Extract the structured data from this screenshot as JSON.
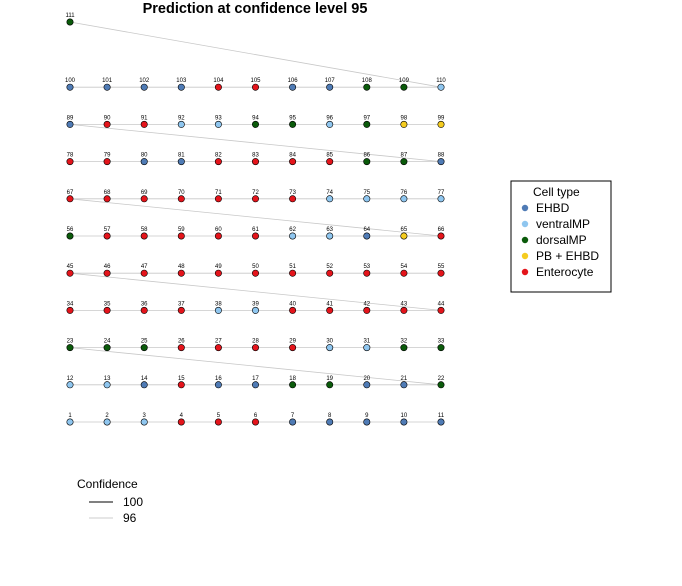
{
  "chart_data": {
    "type": "network",
    "title": "Prediction at confidence level 95",
    "node_colors": {
      "EHBD": "#4f7bb5",
      "ventralMP": "#8fc6ef",
      "dorsalMP": "#0a5a0a",
      "PB + EHBD": "#f5cc1f",
      "Enterocyte": "#e4141b"
    },
    "node_legend": {
      "title": "Cell type",
      "placement": "right",
      "items": [
        "EHBD",
        "ventralMP",
        "dorsalMP",
        "PB + EHBD",
        "Enterocyte"
      ]
    },
    "edge_legend": {
      "title": "Confidence",
      "placement": "bottom-left",
      "items": [
        {
          "label": "100",
          "color": "#000000"
        },
        {
          "label": "96",
          "color": "#cccccc"
        }
      ]
    },
    "grid": {
      "columns": 11,
      "rows": 10
    },
    "nodes": [
      {
        "id": "1",
        "type": "ventralMP"
      },
      {
        "id": "2",
        "type": "ventralMP"
      },
      {
        "id": "3",
        "type": "ventralMP"
      },
      {
        "id": "4",
        "type": "Enterocyte"
      },
      {
        "id": "5",
        "type": "Enterocyte"
      },
      {
        "id": "6",
        "type": "Enterocyte"
      },
      {
        "id": "7",
        "type": "EHBD"
      },
      {
        "id": "8",
        "type": "EHBD"
      },
      {
        "id": "9",
        "type": "EHBD"
      },
      {
        "id": "10",
        "type": "EHBD"
      },
      {
        "id": "11",
        "type": "EHBD"
      },
      {
        "id": "12",
        "type": "ventralMP"
      },
      {
        "id": "13",
        "type": "ventralMP"
      },
      {
        "id": "14",
        "type": "EHBD"
      },
      {
        "id": "15",
        "type": "Enterocyte"
      },
      {
        "id": "16",
        "type": "EHBD"
      },
      {
        "id": "17",
        "type": "EHBD"
      },
      {
        "id": "18",
        "type": "dorsalMP"
      },
      {
        "id": "19",
        "type": "dorsalMP"
      },
      {
        "id": "20",
        "type": "EHBD"
      },
      {
        "id": "21",
        "type": "EHBD"
      },
      {
        "id": "22",
        "type": "dorsalMP"
      },
      {
        "id": "23",
        "type": "dorsalMP"
      },
      {
        "id": "24",
        "type": "dorsalMP"
      },
      {
        "id": "25",
        "type": "dorsalMP"
      },
      {
        "id": "26",
        "type": "Enterocyte"
      },
      {
        "id": "27",
        "type": "Enterocyte"
      },
      {
        "id": "28",
        "type": "Enterocyte"
      },
      {
        "id": "29",
        "type": "Enterocyte"
      },
      {
        "id": "30",
        "type": "ventralMP"
      },
      {
        "id": "31",
        "type": "ventralMP"
      },
      {
        "id": "32",
        "type": "dorsalMP"
      },
      {
        "id": "33",
        "type": "dorsalMP"
      },
      {
        "id": "34",
        "type": "Enterocyte"
      },
      {
        "id": "35",
        "type": "Enterocyte"
      },
      {
        "id": "36",
        "type": "Enterocyte"
      },
      {
        "id": "37",
        "type": "Enterocyte"
      },
      {
        "id": "38",
        "type": "ventralMP"
      },
      {
        "id": "39",
        "type": "ventralMP"
      },
      {
        "id": "40",
        "type": "Enterocyte"
      },
      {
        "id": "41",
        "type": "Enterocyte"
      },
      {
        "id": "42",
        "type": "Enterocyte"
      },
      {
        "id": "43",
        "type": "Enterocyte"
      },
      {
        "id": "44",
        "type": "Enterocyte"
      },
      {
        "id": "45",
        "type": "Enterocyte"
      },
      {
        "id": "46",
        "type": "Enterocyte"
      },
      {
        "id": "47",
        "type": "Enterocyte"
      },
      {
        "id": "48",
        "type": "Enterocyte"
      },
      {
        "id": "49",
        "type": "Enterocyte"
      },
      {
        "id": "50",
        "type": "Enterocyte"
      },
      {
        "id": "51",
        "type": "Enterocyte"
      },
      {
        "id": "52",
        "type": "Enterocyte"
      },
      {
        "id": "53",
        "type": "Enterocyte"
      },
      {
        "id": "54",
        "type": "Enterocyte"
      },
      {
        "id": "55",
        "type": "Enterocyte"
      },
      {
        "id": "56",
        "type": "dorsalMP"
      },
      {
        "id": "57",
        "type": "Enterocyte"
      },
      {
        "id": "58",
        "type": "Enterocyte"
      },
      {
        "id": "59",
        "type": "Enterocyte"
      },
      {
        "id": "60",
        "type": "Enterocyte"
      },
      {
        "id": "61",
        "type": "Enterocyte"
      },
      {
        "id": "62",
        "type": "ventralMP"
      },
      {
        "id": "63",
        "type": "ventralMP"
      },
      {
        "id": "64",
        "type": "EHBD"
      },
      {
        "id": "65",
        "type": "PB + EHBD"
      },
      {
        "id": "66",
        "type": "Enterocyte"
      },
      {
        "id": "67",
        "type": "Enterocyte"
      },
      {
        "id": "68",
        "type": "Enterocyte"
      },
      {
        "id": "69",
        "type": "Enterocyte"
      },
      {
        "id": "70",
        "type": "Enterocyte"
      },
      {
        "id": "71",
        "type": "Enterocyte"
      },
      {
        "id": "72",
        "type": "Enterocyte"
      },
      {
        "id": "73",
        "type": "Enterocyte"
      },
      {
        "id": "74",
        "type": "ventralMP"
      },
      {
        "id": "75",
        "type": "ventralMP"
      },
      {
        "id": "76",
        "type": "ventralMP"
      },
      {
        "id": "77",
        "type": "ventralMP"
      },
      {
        "id": "78",
        "type": "Enterocyte"
      },
      {
        "id": "79",
        "type": "Enterocyte"
      },
      {
        "id": "80",
        "type": "EHBD"
      },
      {
        "id": "81",
        "type": "EHBD"
      },
      {
        "id": "82",
        "type": "Enterocyte"
      },
      {
        "id": "83",
        "type": "Enterocyte"
      },
      {
        "id": "84",
        "type": "Enterocyte"
      },
      {
        "id": "85",
        "type": "Enterocyte"
      },
      {
        "id": "86",
        "type": "dorsalMP"
      },
      {
        "id": "87",
        "type": "dorsalMP"
      },
      {
        "id": "88",
        "type": "EHBD"
      },
      {
        "id": "89",
        "type": "EHBD"
      },
      {
        "id": "90",
        "type": "Enterocyte"
      },
      {
        "id": "91",
        "type": "Enterocyte"
      },
      {
        "id": "92",
        "type": "ventralMP"
      },
      {
        "id": "93",
        "type": "ventralMP"
      },
      {
        "id": "94",
        "type": "dorsalMP"
      },
      {
        "id": "95",
        "type": "dorsalMP"
      },
      {
        "id": "96",
        "type": "ventralMP"
      },
      {
        "id": "97",
        "type": "dorsalMP"
      },
      {
        "id": "98",
        "type": "PB + EHBD"
      },
      {
        "id": "99",
        "type": "PB + EHBD"
      },
      {
        "id": "100",
        "type": "EHBD"
      },
      {
        "id": "101",
        "type": "EHBD"
      },
      {
        "id": "102",
        "type": "EHBD"
      },
      {
        "id": "103",
        "type": "EHBD"
      },
      {
        "id": "104",
        "type": "Enterocyte"
      },
      {
        "id": "105",
        "type": "Enterocyte"
      },
      {
        "id": "106",
        "type": "EHBD"
      },
      {
        "id": "107",
        "type": "EHBD"
      },
      {
        "id": "108",
        "type": "dorsalMP"
      },
      {
        "id": "109",
        "type": "dorsalMP"
      },
      {
        "id": "110",
        "type": "ventralMP"
      },
      {
        "id": "111",
        "type": "dorsalMP"
      }
    ],
    "edges": [
      {
        "from": "1",
        "to": "2",
        "confidence": 96
      },
      {
        "from": "2",
        "to": "3",
        "confidence": 96
      },
      {
        "from": "3",
        "to": "4",
        "confidence": 96
      },
      {
        "from": "4",
        "to": "5",
        "confidence": 96
      },
      {
        "from": "5",
        "to": "6",
        "confidence": 96
      },
      {
        "from": "6",
        "to": "7",
        "confidence": 96
      },
      {
        "from": "7",
        "to": "8",
        "confidence": 96
      },
      {
        "from": "8",
        "to": "9",
        "confidence": 96
      },
      {
        "from": "9",
        "to": "10",
        "confidence": 96
      },
      {
        "from": "10",
        "to": "11",
        "confidence": 96
      },
      {
        "from": "12",
        "to": "13",
        "confidence": 96
      },
      {
        "from": "13",
        "to": "14",
        "confidence": 96
      },
      {
        "from": "14",
        "to": "15",
        "confidence": 96
      },
      {
        "from": "15",
        "to": "16",
        "confidence": 96
      },
      {
        "from": "16",
        "to": "17",
        "confidence": 96
      },
      {
        "from": "17",
        "to": "18",
        "confidence": 96
      },
      {
        "from": "18",
        "to": "19",
        "confidence": 96
      },
      {
        "from": "19",
        "to": "20",
        "confidence": 96
      },
      {
        "from": "20",
        "to": "21",
        "confidence": 96
      },
      {
        "from": "21",
        "to": "22",
        "confidence": 96
      },
      {
        "from": "23",
        "to": "22",
        "confidence": 96
      },
      {
        "from": "23",
        "to": "24",
        "confidence": 96
      },
      {
        "from": "24",
        "to": "25",
        "confidence": 96
      },
      {
        "from": "25",
        "to": "26",
        "confidence": 96
      },
      {
        "from": "26",
        "to": "27",
        "confidence": 96
      },
      {
        "from": "27",
        "to": "28",
        "confidence": 96
      },
      {
        "from": "28",
        "to": "29",
        "confidence": 96
      },
      {
        "from": "29",
        "to": "30",
        "confidence": 96
      },
      {
        "from": "30",
        "to": "31",
        "confidence": 96
      },
      {
        "from": "31",
        "to": "32",
        "confidence": 96
      },
      {
        "from": "32",
        "to": "33",
        "confidence": 96
      },
      {
        "from": "34",
        "to": "35",
        "confidence": 96
      },
      {
        "from": "35",
        "to": "36",
        "confidence": 96
      },
      {
        "from": "36",
        "to": "37",
        "confidence": 96
      },
      {
        "from": "37",
        "to": "38",
        "confidence": 96
      },
      {
        "from": "38",
        "to": "39",
        "confidence": 96
      },
      {
        "from": "39",
        "to": "40",
        "confidence": 96
      },
      {
        "from": "40",
        "to": "41",
        "confidence": 96
      },
      {
        "from": "41",
        "to": "42",
        "confidence": 96
      },
      {
        "from": "42",
        "to": "43",
        "confidence": 96
      },
      {
        "from": "43",
        "to": "44",
        "confidence": 96
      },
      {
        "from": "45",
        "to": "44",
        "confidence": 96
      },
      {
        "from": "45",
        "to": "46",
        "confidence": 96
      },
      {
        "from": "46",
        "to": "47",
        "confidence": 96
      },
      {
        "from": "47",
        "to": "48",
        "confidence": 96
      },
      {
        "from": "48",
        "to": "49",
        "confidence": 96
      },
      {
        "from": "49",
        "to": "50",
        "confidence": 96
      },
      {
        "from": "50",
        "to": "51",
        "confidence": 96
      },
      {
        "from": "51",
        "to": "52",
        "confidence": 96
      },
      {
        "from": "52",
        "to": "53",
        "confidence": 96
      },
      {
        "from": "53",
        "to": "54",
        "confidence": 96
      },
      {
        "from": "54",
        "to": "55",
        "confidence": 96
      },
      {
        "from": "56",
        "to": "57",
        "confidence": 96
      },
      {
        "from": "57",
        "to": "58",
        "confidence": 96
      },
      {
        "from": "58",
        "to": "59",
        "confidence": 96
      },
      {
        "from": "59",
        "to": "60",
        "confidence": 96
      },
      {
        "from": "60",
        "to": "61",
        "confidence": 96
      },
      {
        "from": "61",
        "to": "62",
        "confidence": 96
      },
      {
        "from": "62",
        "to": "63",
        "confidence": 96
      },
      {
        "from": "63",
        "to": "64",
        "confidence": 96
      },
      {
        "from": "64",
        "to": "65",
        "confidence": 96
      },
      {
        "from": "65",
        "to": "66",
        "confidence": 96
      },
      {
        "from": "67",
        "to": "66",
        "confidence": 96
      },
      {
        "from": "67",
        "to": "68",
        "confidence": 96
      },
      {
        "from": "68",
        "to": "69",
        "confidence": 96
      },
      {
        "from": "69",
        "to": "70",
        "confidence": 96
      },
      {
        "from": "70",
        "to": "71",
        "confidence": 96
      },
      {
        "from": "71",
        "to": "72",
        "confidence": 96
      },
      {
        "from": "72",
        "to": "73",
        "confidence": 96
      },
      {
        "from": "73",
        "to": "74",
        "confidence": 96
      },
      {
        "from": "74",
        "to": "75",
        "confidence": 96
      },
      {
        "from": "75",
        "to": "76",
        "confidence": 96
      },
      {
        "from": "76",
        "to": "77",
        "confidence": 96
      },
      {
        "from": "78",
        "to": "79",
        "confidence": 96
      },
      {
        "from": "79",
        "to": "80",
        "confidence": 96
      },
      {
        "from": "80",
        "to": "81",
        "confidence": 96
      },
      {
        "from": "81",
        "to": "82",
        "confidence": 96
      },
      {
        "from": "82",
        "to": "83",
        "confidence": 96
      },
      {
        "from": "83",
        "to": "84",
        "confidence": 96
      },
      {
        "from": "84",
        "to": "85",
        "confidence": 96
      },
      {
        "from": "85",
        "to": "86",
        "confidence": 96
      },
      {
        "from": "86",
        "to": "87",
        "confidence": 96
      },
      {
        "from": "87",
        "to": "88",
        "confidence": 96
      },
      {
        "from": "89",
        "to": "88",
        "confidence": 96
      },
      {
        "from": "89",
        "to": "90",
        "confidence": 96
      },
      {
        "from": "90",
        "to": "91",
        "confidence": 96
      },
      {
        "from": "91",
        "to": "92",
        "confidence": 96
      },
      {
        "from": "92",
        "to": "93",
        "confidence": 96
      },
      {
        "from": "93",
        "to": "94",
        "confidence": 96
      },
      {
        "from": "94",
        "to": "95",
        "confidence": 96
      },
      {
        "from": "95",
        "to": "96",
        "confidence": 96
      },
      {
        "from": "96",
        "to": "97",
        "confidence": 96
      },
      {
        "from": "97",
        "to": "98",
        "confidence": 96
      },
      {
        "from": "98",
        "to": "99",
        "confidence": 96
      },
      {
        "from": "100",
        "to": "101",
        "confidence": 96
      },
      {
        "from": "101",
        "to": "102",
        "confidence": 96
      },
      {
        "from": "102",
        "to": "103",
        "confidence": 96
      },
      {
        "from": "103",
        "to": "104",
        "confidence": 96
      },
      {
        "from": "104",
        "to": "105",
        "confidence": 96
      },
      {
        "from": "105",
        "to": "106",
        "confidence": 96
      },
      {
        "from": "106",
        "to": "107",
        "confidence": 96
      },
      {
        "from": "107",
        "to": "108",
        "confidence": 96
      },
      {
        "from": "108",
        "to": "109",
        "confidence": 96
      },
      {
        "from": "109",
        "to": "110",
        "confidence": 96
      },
      {
        "from": "111",
        "to": "110",
        "confidence": 96
      }
    ]
  }
}
